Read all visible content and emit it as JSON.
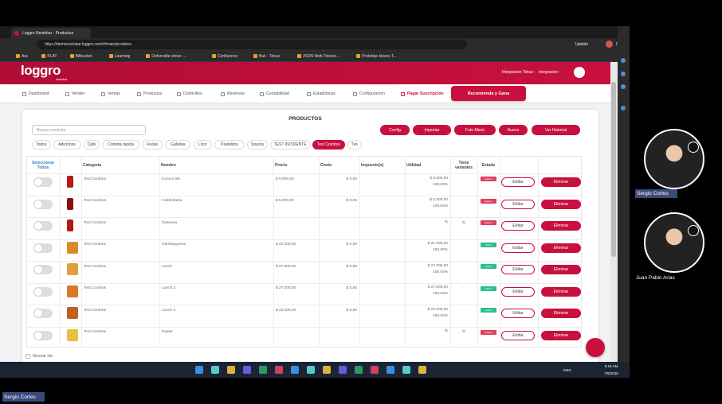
{
  "browser": {
    "tab_title": "Loggro Restobar - Productos",
    "url": "https://demorestobar.loggro.com/#/main/produtos",
    "bookmarks": [
      "Ara",
      "PLAT",
      "Bitbucket",
      "Learning",
      "Deferrable views -...",
      "Confluence",
      "Buk - Tekus",
      "JSON Web Tokens...",
      "Prototipo kiosco T..."
    ],
    "profile_button": "Update",
    "chat": "Chat"
  },
  "app": {
    "logo": "loggro",
    "logo_sub": "restobar",
    "user": [
      "Integracion Tekus -",
      "Integracion"
    ],
    "nav": [
      "Dashboard",
      "Vender",
      "Ventas",
      "Productos",
      "Domicilios",
      "Reservas",
      "Contabilidad",
      "Estadísticas",
      "Configuración",
      "Pagar Suscripción"
    ],
    "cta": "Recomienda y Gana"
  },
  "page": {
    "title": "PRODUCTOS",
    "search_placeholder": "Buscar producto",
    "actions": [
      "Config",
      "Importar",
      "Foto Menú",
      "Nuevo",
      "Ver Historial"
    ],
    "filters": [
      "Todos",
      "Adiciones",
      "Café",
      "Comida rapida",
      "Frutas",
      "Galletas",
      "Licor",
      "Pastelitos",
      "Snacks",
      "TEST INCIDENTE",
      "Test Combos",
      "Tés"
    ],
    "active_filter": 10,
    "columns": [
      "Seleccionar Todos",
      "Categoría",
      "Nombre",
      "Precio",
      "Costo",
      "Impuesto(s)",
      "Utilidad",
      "Tiene variantes",
      "Estado"
    ],
    "row_actions": [
      "Editar",
      "Eliminar"
    ],
    "rows": [
      {
        "category": "Test Combos",
        "name": "Coca-Cola",
        "price": "$ 5.000,00",
        "cost": "$ 0,00",
        "utility": "$ 5.000,00",
        "utility_pct": "100,00%",
        "variants": "-",
        "status": "Inactivo"
      },
      {
        "category": "Test Combos",
        "name": "Colombiana",
        "price": "$ 5.000,00",
        "cost": "$ 0,00",
        "utility": "$ 5.000,00",
        "utility_pct": "100,00%",
        "variants": "-",
        "status": "Inactivo"
      },
      {
        "category": "Test Combos",
        "name": "Gaseosa",
        "utility_pct": "%",
        "variants": "Si",
        "status": "Inactivo"
      },
      {
        "category": "Test Combos",
        "name": "Hamburguesa",
        "price": "$ 21.000,00",
        "cost": "$ 0,00",
        "utility": "$ 21.000,00",
        "utility_pct": "100,00%",
        "variants": "-",
        "status": "Activo"
      },
      {
        "category": "Test Combos",
        "name": "Lunch",
        "price": "$ 27.000,00",
        "cost": "$ 0,00",
        "utility": "$ 27.000,00",
        "utility_pct": "100,00%",
        "variants": "-",
        "status": "Activo"
      },
      {
        "category": "Test Combos",
        "name": "Lunch 2",
        "price": "$ 27.000,00",
        "cost": "$ 0,00",
        "utility": "$ 27.000,00",
        "utility_pct": "100,00%",
        "variants": "-",
        "status": "Activo"
      },
      {
        "category": "Test Combos",
        "name": "Lunch 3",
        "price": "$ 22.000,00",
        "cost": "$ 0,00",
        "utility": "$ 22.000,00",
        "utility_pct": "100,00%",
        "variants": "-",
        "status": "Activo"
      },
      {
        "category": "Test Combos",
        "name": "Papas",
        "utility_pct": "%",
        "variants": "Si",
        "status": "Inactivo"
      }
    ],
    "footer": "Mostrar Ids"
  },
  "call": {
    "participants": [
      "Sergio Cortes",
      "Juan Pablo Arias"
    ],
    "presenter": "Sergio Cortes"
  },
  "taskbar": {
    "language": "ENG",
    "time": "8:16 AM",
    "date": "7/8/2026"
  }
}
